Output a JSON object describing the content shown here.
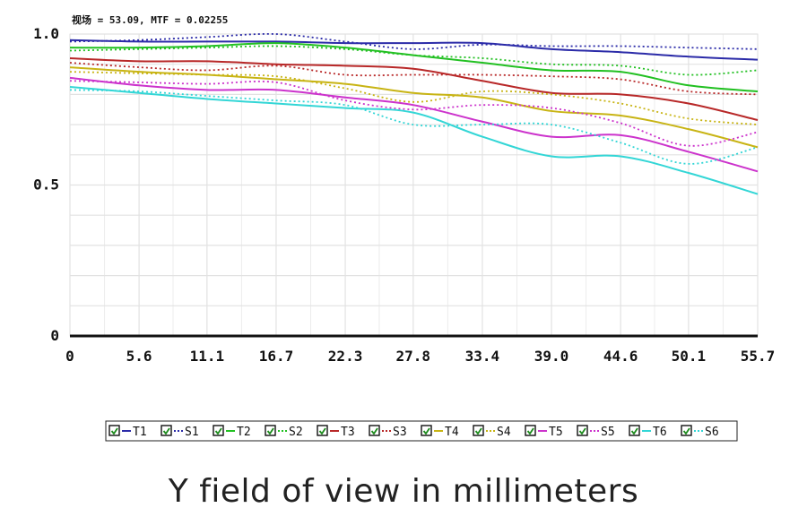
{
  "readout": "视场 = 53.09, MTF = 0.02255",
  "caption": "Y field of view in millimeters",
  "chart_data": {
    "type": "line",
    "title": "",
    "xlabel": "Y field of view in millimeters",
    "ylabel": "",
    "xlim": [
      0,
      55.7
    ],
    "ylim": [
      0,
      1.0
    ],
    "x_ticks": [
      "0",
      "5.6",
      "11.1",
      "16.7",
      "22.3",
      "27.8",
      "33.4",
      "39.0",
      "44.6",
      "50.1",
      "55.7"
    ],
    "y_ticks": [
      "0",
      "0.5",
      "1.0"
    ],
    "grid": true,
    "legend_position": "bottom",
    "x": [
      0,
      5.6,
      11.1,
      16.7,
      22.3,
      27.8,
      33.4,
      39.0,
      44.6,
      50.1,
      55.7
    ],
    "series": [
      {
        "name": "T1",
        "color": "#2b2ba8",
        "style": "solid",
        "values": [
          0.98,
          0.975,
          0.975,
          0.975,
          0.97,
          0.97,
          0.97,
          0.95,
          0.94,
          0.925,
          0.915
        ]
      },
      {
        "name": "S1",
        "color": "#2b2ba8",
        "style": "dotted",
        "values": [
          0.975,
          0.98,
          0.99,
          1.0,
          0.975,
          0.95,
          0.965,
          0.96,
          0.96,
          0.955,
          0.95
        ]
      },
      {
        "name": "T2",
        "color": "#22c022",
        "style": "solid",
        "values": [
          0.955,
          0.955,
          0.96,
          0.97,
          0.955,
          0.93,
          0.905,
          0.88,
          0.875,
          0.83,
          0.81
        ]
      },
      {
        "name": "S2",
        "color": "#22c022",
        "style": "dotted",
        "values": [
          0.945,
          0.95,
          0.955,
          0.96,
          0.95,
          0.93,
          0.92,
          0.9,
          0.895,
          0.865,
          0.88
        ]
      },
      {
        "name": "T3",
        "color": "#b82828",
        "style": "solid",
        "values": [
          0.92,
          0.91,
          0.91,
          0.9,
          0.895,
          0.885,
          0.845,
          0.805,
          0.8,
          0.77,
          0.715
        ]
      },
      {
        "name": "S3",
        "color": "#b82828",
        "style": "dotted",
        "values": [
          0.905,
          0.89,
          0.88,
          0.895,
          0.865,
          0.865,
          0.865,
          0.86,
          0.85,
          0.81,
          0.8
        ]
      },
      {
        "name": "T4",
        "color": "#c8b414",
        "style": "solid",
        "values": [
          0.89,
          0.875,
          0.865,
          0.85,
          0.835,
          0.805,
          0.79,
          0.745,
          0.73,
          0.685,
          0.625
        ]
      },
      {
        "name": "S4",
        "color": "#c8b414",
        "style": "dotted",
        "values": [
          0.875,
          0.87,
          0.865,
          0.86,
          0.82,
          0.775,
          0.81,
          0.8,
          0.77,
          0.72,
          0.7
        ]
      },
      {
        "name": "T5",
        "color": "#cc33cc",
        "style": "solid",
        "values": [
          0.855,
          0.83,
          0.815,
          0.815,
          0.79,
          0.765,
          0.71,
          0.66,
          0.665,
          0.61,
          0.545
        ]
      },
      {
        "name": "S5",
        "color": "#cc33cc",
        "style": "dotted",
        "values": [
          0.845,
          0.84,
          0.835,
          0.84,
          0.78,
          0.75,
          0.765,
          0.755,
          0.705,
          0.63,
          0.675
        ]
      },
      {
        "name": "T6",
        "color": "#33d6d6",
        "style": "solid",
        "values": [
          0.825,
          0.805,
          0.785,
          0.77,
          0.755,
          0.74,
          0.66,
          0.595,
          0.595,
          0.54,
          0.47
        ]
      },
      {
        "name": "S6",
        "color": "#33d6d6",
        "style": "dotted",
        "values": [
          0.815,
          0.81,
          0.795,
          0.78,
          0.765,
          0.7,
          0.7,
          0.7,
          0.64,
          0.57,
          0.625
        ]
      }
    ]
  }
}
